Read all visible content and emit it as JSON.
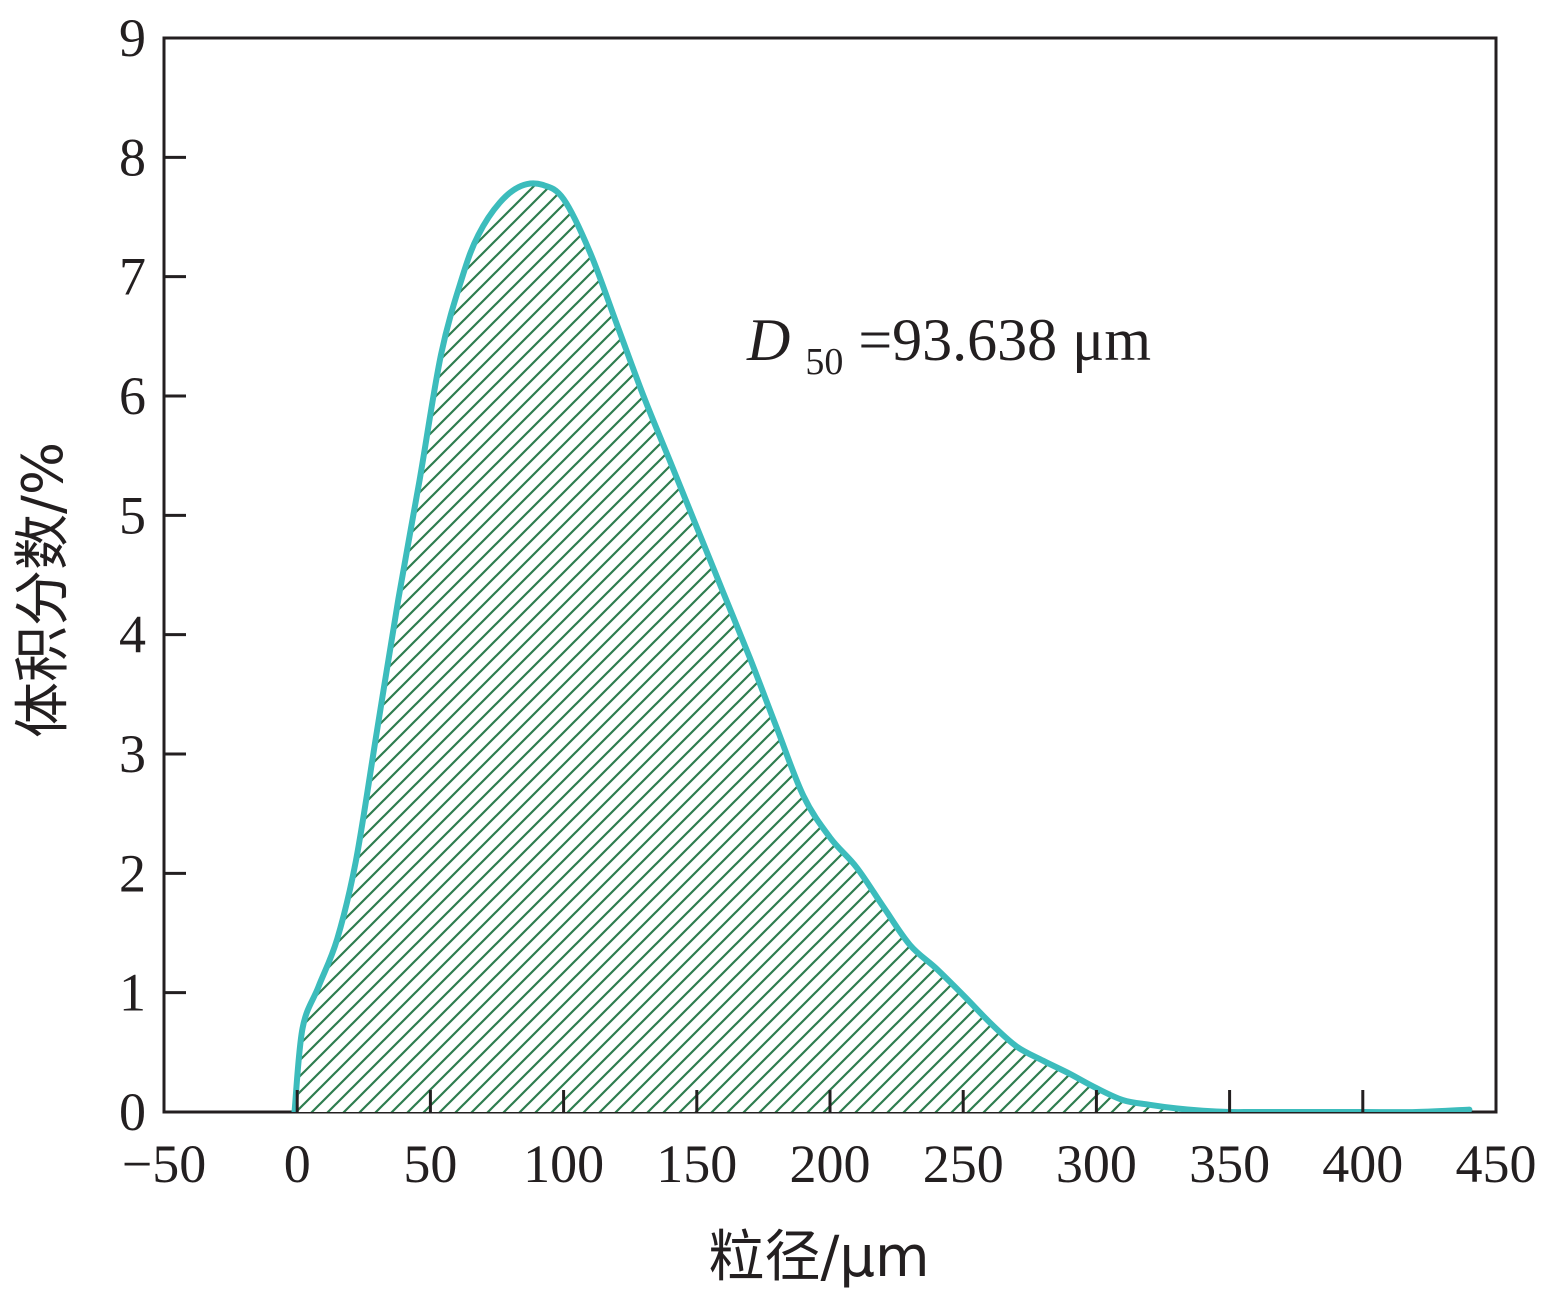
{
  "chart_data": {
    "type": "area",
    "xlabel": "粒径/μm",
    "ylabel": "体积分数/%",
    "xlim": [
      -50,
      450
    ],
    "ylim": [
      0,
      9
    ],
    "x_ticks": [
      -50,
      0,
      50,
      100,
      150,
      200,
      250,
      300,
      350,
      400,
      450
    ],
    "y_ticks": [
      0,
      1,
      2,
      3,
      4,
      5,
      6,
      7,
      8,
      9
    ],
    "x_tick_labels": [
      "−50",
      "0",
      "50",
      "100",
      "150",
      "200",
      "250",
      "300",
      "350",
      "400",
      "450"
    ],
    "y_tick_labels": [
      "0",
      "1",
      "2",
      "3",
      "4",
      "5",
      "6",
      "7",
      "8",
      "9"
    ],
    "grid": false,
    "legend": "none",
    "line_color": "#3cbcbc",
    "fill_hatch_color": "#2e7d4f",
    "annotation": {
      "main": "D",
      "subscript": "50",
      "rest": "=93.638 μm"
    },
    "series": [
      {
        "x": [
          -1,
          2,
          8,
          15,
          22,
          30,
          38,
          46,
          54,
          62,
          68,
          76,
          84,
          92,
          100,
          110,
          120,
          130,
          140,
          150,
          160,
          170,
          180,
          190,
          200,
          210,
          220,
          230,
          240,
          250,
          260,
          270,
          280,
          290,
          300,
          310,
          320,
          330,
          340,
          350,
          360,
          380,
          400,
          420,
          440
        ],
        "y": [
          0,
          0.7,
          1.05,
          1.45,
          2.1,
          3.2,
          4.3,
          5.3,
          6.35,
          7.0,
          7.35,
          7.62,
          7.76,
          7.77,
          7.65,
          7.2,
          6.6,
          6.0,
          5.45,
          4.9,
          4.35,
          3.8,
          3.22,
          2.65,
          2.3,
          2.05,
          1.72,
          1.4,
          1.2,
          0.98,
          0.75,
          0.55,
          0.43,
          0.32,
          0.2,
          0.1,
          0.06,
          0.03,
          0.01,
          0,
          0,
          0,
          0,
          0,
          0.02
        ]
      }
    ]
  }
}
